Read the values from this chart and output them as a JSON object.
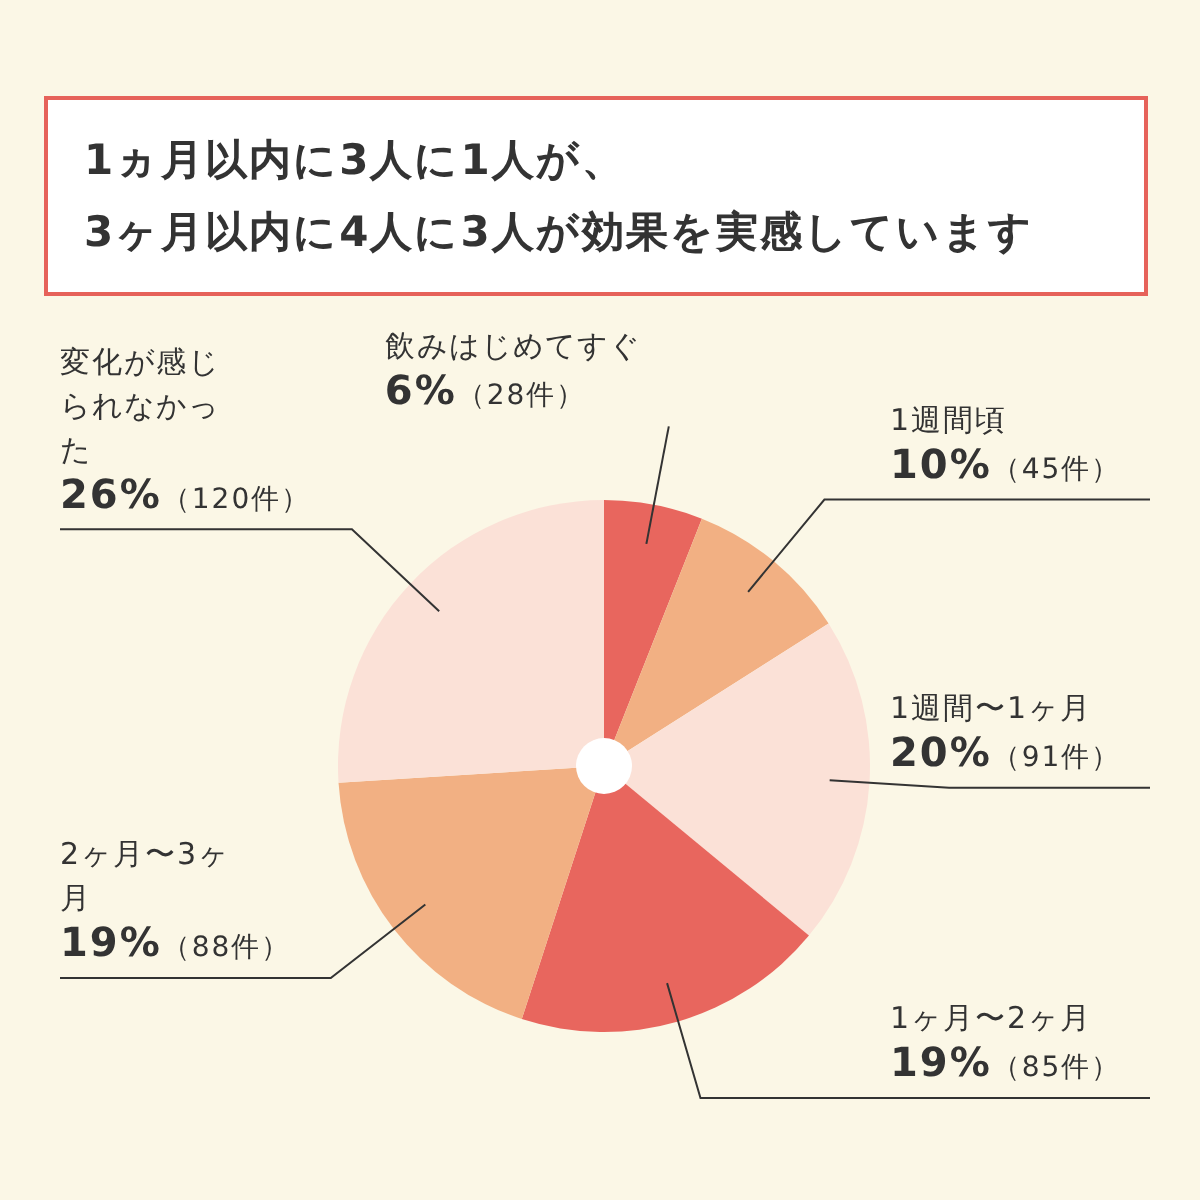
{
  "chart_data": {
    "type": "pie",
    "title": "1ヵ月以内に3人に1人が、\n3ヶ月以内に4人に3人が効果を実感しています",
    "categories": [
      "飲みはじめてすぐ",
      "1週間頃",
      "1週間〜1ヶ月",
      "1ヶ月〜2ヶ月",
      "2ヶ月〜3ヶ月",
      "変化が感じられなかった"
    ],
    "values": [
      6,
      10,
      20,
      19,
      19,
      26
    ],
    "colors": [
      "#e8665e",
      "#f2b083",
      "#fbe1d7",
      "#e8665e",
      "#f2b083",
      "#fbe1d7"
    ],
    "value_labels": [
      "6%（28件）",
      "10%（45件）",
      "20%（91件）",
      "19%（85件）",
      "19%（88件）",
      "26%（120件）"
    ]
  }
}
